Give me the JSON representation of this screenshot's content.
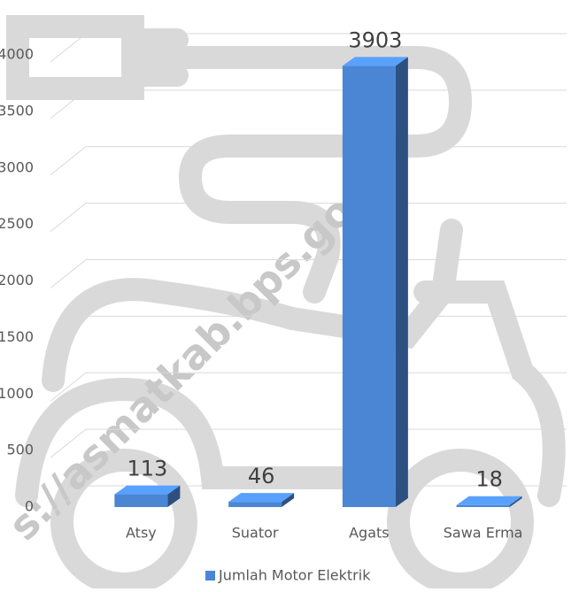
{
  "chart_data": {
    "type": "bar3d",
    "categories": [
      "Atsy",
      "Suator",
      "Agats",
      "Sawa Erma"
    ],
    "series": [
      {
        "name": "Jumlah Motor Elektrik",
        "color": "#4a86d4",
        "values": [
          113,
          46,
          3903,
          18
        ]
      }
    ],
    "ylim": [
      0,
      4000
    ],
    "yticks": [
      0,
      500,
      1000,
      1500,
      2000,
      2500,
      3000,
      3500,
      4000
    ],
    "grid": true,
    "legend": "bottom",
    "watermark": "s://asmatkab.bps.go.id"
  }
}
